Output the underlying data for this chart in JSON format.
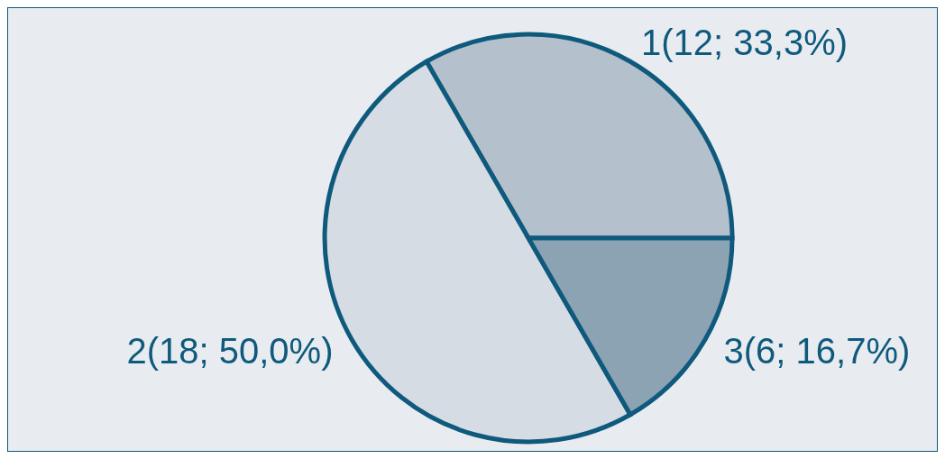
{
  "chart_data": {
    "type": "pie",
    "categories": [
      "1",
      "2",
      "3"
    ],
    "values": [
      12,
      18,
      6
    ],
    "colors": [
      "#b4c0cc",
      "#d6dce4",
      "#8ca3b4"
    ],
    "value_labels": [
      "(12; 33,3%)",
      "(18; 50,0%)",
      "(6; 16,7%)"
    ]
  }
}
